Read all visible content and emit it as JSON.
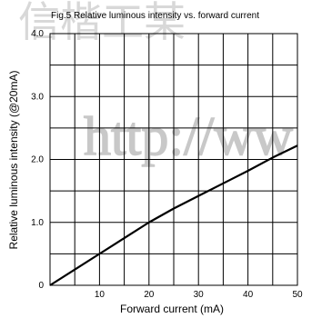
{
  "watermark": {
    "chars": "信楷工某",
    "url": "http://ww"
  },
  "chart_data": {
    "type": "line",
    "title": "Fig.5 Relative luminous intensity vs. forward current",
    "xlabel": "Forward current (mA)",
    "ylabel": "Relative luminous intensity (@20mA)",
    "xlim": [
      0,
      50
    ],
    "ylim": [
      0,
      4.0
    ],
    "x_ticks": [
      10,
      20,
      30,
      40,
      50
    ],
    "y_ticks": [
      0,
      1.0,
      2.0,
      3.0,
      4.0
    ],
    "x_tick_labels": [
      "10",
      "20",
      "30",
      "40",
      "50"
    ],
    "y_tick_labels": [
      "0",
      "1.0",
      "2.0",
      "3.0",
      "4.0"
    ],
    "grid": true,
    "grid_x_step": 5,
    "grid_y_step": 0.5,
    "series": [
      {
        "x": [
          0,
          5,
          10,
          15,
          20,
          25,
          30,
          35,
          40,
          45,
          50
        ],
        "y": [
          0,
          0.25,
          0.5,
          0.75,
          1.0,
          1.22,
          1.42,
          1.62,
          1.82,
          2.03,
          2.22
        ]
      }
    ]
  }
}
